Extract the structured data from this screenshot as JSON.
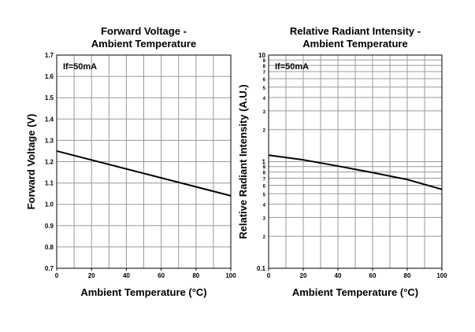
{
  "chart_data": [
    {
      "type": "line",
      "title": [
        "Forward Voltage -",
        "Ambient Temperature"
      ],
      "x_label": "Ambient Temperature (°C)",
      "y_label": "Forward Voltage (V)",
      "annotation": "If=50mA",
      "x": [
        0,
        100
      ],
      "values": [
        1.25,
        1.04
      ],
      "color": "#000000",
      "xlim": [
        0,
        100
      ],
      "xticks": [
        0,
        20,
        40,
        60,
        80,
        100
      ],
      "xgrid": [
        0,
        10,
        20,
        30,
        40,
        50,
        60,
        70,
        80,
        90,
        100
      ],
      "ylim": [
        0.7,
        1.7
      ],
      "yticks": [
        0.7,
        0.8,
        0.9,
        {
          "value": 1,
          "label": "1.0"
        },
        1.1,
        1.2,
        1.3,
        1.4,
        1.5,
        1.6,
        1.7
      ],
      "log_y": false,
      "grid": true
    },
    {
      "type": "line",
      "title": [
        "Relative Radiant Intensity -",
        "Ambient Temperature"
      ],
      "x_label": "Ambient Temperature (°C)",
      "y_label": "Relative Radiant Intensity (A.U.)",
      "annotation": "If=50mA",
      "x": [
        0,
        20,
        40,
        60,
        80,
        100
      ],
      "values": [
        1.15,
        1.04,
        0.91,
        0.79,
        0.68,
        0.55
      ],
      "color": "#000000",
      "xlim": [
        0,
        100
      ],
      "xticks": [
        0,
        20,
        40,
        60,
        80,
        100
      ],
      "xgrid": [
        0,
        10,
        20,
        30,
        40,
        50,
        60,
        70,
        80,
        90,
        100
      ],
      "ylim": [
        0.1,
        10
      ],
      "yticks": [
        0.1,
        {
          "value": 0.2,
          "label": "2"
        },
        {
          "value": 0.3,
          "label": "3"
        },
        {
          "value": 0.4,
          "label": "4"
        },
        {
          "value": 0.5,
          "label": "5"
        },
        {
          "value": 0.6,
          "label": "6"
        },
        {
          "value": 0.7,
          "label": "7"
        },
        {
          "value": 0.8,
          "label": "8"
        },
        {
          "value": 0.9,
          "label": "9"
        },
        1,
        2,
        3,
        4,
        5,
        6,
        7,
        8,
        9,
        10
      ],
      "log_y": true,
      "grid": true
    }
  ]
}
